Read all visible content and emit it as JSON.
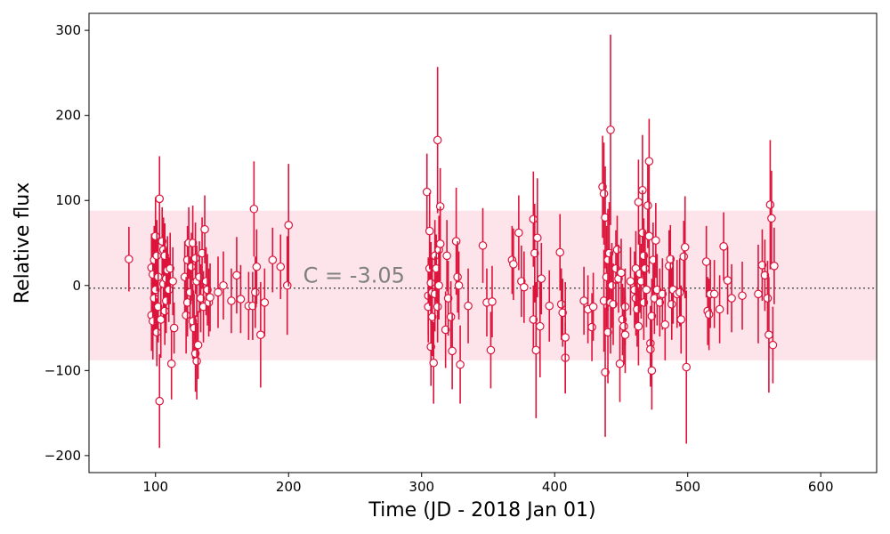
{
  "chart_data": {
    "type": "scatter",
    "title": "",
    "xlabel": "Time (JD - 2018 Jan 01)",
    "ylabel": "Relative flux",
    "xlim": [
      50,
      642
    ],
    "ylim": [
      -220,
      320
    ],
    "xticks": [
      100,
      200,
      300,
      400,
      500,
      600
    ],
    "yticks": [
      -200,
      -100,
      0,
      100,
      200,
      300
    ],
    "annotation": "C = -3.05",
    "reference_level": -3.05,
    "band": [
      -88,
      88
    ],
    "grid": false,
    "colors": {
      "errorbar": "#dc143c",
      "marker_edge": "#dc143c",
      "marker_fill": "#ffffff",
      "band": "#fce4ea",
      "reference_line": "#555555",
      "annotation": "#808080"
    },
    "points": [
      {
        "x": 80,
        "y": 31,
        "err": 38
      },
      {
        "x": 97,
        "y": 21,
        "err": 40
      },
      {
        "x": 97,
        "y": -35,
        "err": 42
      },
      {
        "x": 98,
        "y": 13,
        "err": 45
      },
      {
        "x": 98,
        "y": -42,
        "err": 45
      },
      {
        "x": 99,
        "y": 30,
        "err": 40
      },
      {
        "x": 99,
        "y": -15,
        "err": 38
      },
      {
        "x": 100,
        "y": 58,
        "err": 46
      },
      {
        "x": 100,
        "y": -5,
        "err": 50
      },
      {
        "x": 101,
        "y": 35,
        "err": 42
      },
      {
        "x": 101,
        "y": -55,
        "err": 40
      },
      {
        "x": 102,
        "y": 10,
        "err": 44
      },
      {
        "x": 102,
        "y": -25,
        "err": 42
      },
      {
        "x": 103,
        "y": 102,
        "err": 50
      },
      {
        "x": 103,
        "y": -136,
        "err": 55
      },
      {
        "x": 104,
        "y": -40,
        "err": 45
      },
      {
        "x": 105,
        "y": 52,
        "err": 40
      },
      {
        "x": 106,
        "y": 42,
        "err": 38
      },
      {
        "x": 106,
        "y": 2,
        "err": 40
      },
      {
        "x": 107,
        "y": 35,
        "err": 38
      },
      {
        "x": 107,
        "y": -30,
        "err": 40
      },
      {
        "x": 108,
        "y": 8,
        "err": 36
      },
      {
        "x": 108,
        "y": -18,
        "err": 38
      },
      {
        "x": 109,
        "y": 18,
        "err": 40
      },
      {
        "x": 110,
        "y": -5,
        "err": 38
      },
      {
        "x": 111,
        "y": 20,
        "err": 42
      },
      {
        "x": 112,
        "y": -92,
        "err": 42
      },
      {
        "x": 113,
        "y": 5,
        "err": 40
      },
      {
        "x": 114,
        "y": -50,
        "err": 30
      },
      {
        "x": 122,
        "y": 10,
        "err": 42
      },
      {
        "x": 123,
        "y": -35,
        "err": 45
      },
      {
        "x": 124,
        "y": 30,
        "err": 40
      },
      {
        "x": 124,
        "y": -20,
        "err": 40
      },
      {
        "x": 125,
        "y": 50,
        "err": 42
      },
      {
        "x": 126,
        "y": -8,
        "err": 42
      },
      {
        "x": 127,
        "y": 22,
        "err": 40
      },
      {
        "x": 128,
        "y": 50,
        "err": 44
      },
      {
        "x": 128,
        "y": -42,
        "err": 44
      },
      {
        "x": 129,
        "y": -50,
        "err": 40
      },
      {
        "x": 130,
        "y": -80,
        "err": 45
      },
      {
        "x": 130,
        "y": 32,
        "err": 42
      },
      {
        "x": 131,
        "y": -89,
        "err": 45
      },
      {
        "x": 131,
        "y": 5,
        "err": 42
      },
      {
        "x": 132,
        "y": -70,
        "err": 40
      },
      {
        "x": 133,
        "y": 10,
        "err": 42
      },
      {
        "x": 134,
        "y": -15,
        "err": 40
      },
      {
        "x": 135,
        "y": 38,
        "err": 42
      },
      {
        "x": 136,
        "y": -25,
        "err": 42
      },
      {
        "x": 137,
        "y": 66,
        "err": 40
      },
      {
        "x": 138,
        "y": 5,
        "err": 40
      },
      {
        "x": 139,
        "y": -5,
        "err": 42
      },
      {
        "x": 140,
        "y": -20,
        "err": 40
      },
      {
        "x": 141,
        "y": -14,
        "err": 40
      },
      {
        "x": 147,
        "y": -8,
        "err": 42
      },
      {
        "x": 151,
        "y": 0,
        "err": 40
      },
      {
        "x": 157,
        "y": -18,
        "err": 38
      },
      {
        "x": 161,
        "y": 12,
        "err": 45
      },
      {
        "x": 164,
        "y": -16,
        "err": 40
      },
      {
        "x": 170,
        "y": -24,
        "err": 40
      },
      {
        "x": 173,
        "y": -24,
        "err": 40
      },
      {
        "x": 174,
        "y": 90,
        "err": 56
      },
      {
        "x": 175,
        "y": -8,
        "err": 42
      },
      {
        "x": 176,
        "y": 22,
        "err": 44
      },
      {
        "x": 179,
        "y": -58,
        "err": 62
      },
      {
        "x": 182,
        "y": -20,
        "err": 40
      },
      {
        "x": 188,
        "y": 30,
        "err": 38
      },
      {
        "x": 194,
        "y": 22,
        "err": 38
      },
      {
        "x": 199,
        "y": 0,
        "err": 58
      },
      {
        "x": 200,
        "y": 71,
        "err": 72
      },
      {
        "x": 304,
        "y": 110,
        "err": 45
      },
      {
        "x": 305,
        "y": -12,
        "err": 45
      },
      {
        "x": 305,
        "y": -25,
        "err": 42
      },
      {
        "x": 306,
        "y": 20,
        "err": 44
      },
      {
        "x": 306,
        "y": 64,
        "err": 45
      },
      {
        "x": 307,
        "y": 3,
        "err": 48
      },
      {
        "x": 307,
        "y": -72,
        "err": 46
      },
      {
        "x": 308,
        "y": -8,
        "err": 44
      },
      {
        "x": 308,
        "y": -37,
        "err": 46
      },
      {
        "x": 309,
        "y": -91,
        "err": 48
      },
      {
        "x": 310,
        "y": 35,
        "err": 42
      },
      {
        "x": 310,
        "y": -10,
        "err": 44
      },
      {
        "x": 311,
        "y": 20,
        "err": 40
      },
      {
        "x": 312,
        "y": 171,
        "err": 86
      },
      {
        "x": 312,
        "y": -25,
        "err": 42
      },
      {
        "x": 313,
        "y": 42,
        "err": 40
      },
      {
        "x": 313,
        "y": 0,
        "err": 40
      },
      {
        "x": 314,
        "y": 93,
        "err": 45
      },
      {
        "x": 314,
        "y": 49,
        "err": 44
      },
      {
        "x": 318,
        "y": -52,
        "err": 45
      },
      {
        "x": 319,
        "y": 35,
        "err": 42
      },
      {
        "x": 320,
        "y": -15,
        "err": 44
      },
      {
        "x": 322,
        "y": -37,
        "err": 42
      },
      {
        "x": 323,
        "y": -77,
        "err": 45
      },
      {
        "x": 326,
        "y": 52,
        "err": 63
      },
      {
        "x": 327,
        "y": 10,
        "err": 42
      },
      {
        "x": 328,
        "y": 0,
        "err": 40
      },
      {
        "x": 329,
        "y": -93,
        "err": 46
      },
      {
        "x": 335,
        "y": -24,
        "err": 44
      },
      {
        "x": 346,
        "y": 47,
        "err": 44
      },
      {
        "x": 349,
        "y": -20,
        "err": 40
      },
      {
        "x": 352,
        "y": -76,
        "err": 45
      },
      {
        "x": 353,
        "y": -19,
        "err": 42
      },
      {
        "x": 368,
        "y": 30,
        "err": 40
      },
      {
        "x": 369,
        "y": 25,
        "err": 42
      },
      {
        "x": 373,
        "y": 62,
        "err": 44
      },
      {
        "x": 375,
        "y": 5,
        "err": 42
      },
      {
        "x": 377,
        "y": -2,
        "err": 42
      },
      {
        "x": 384,
        "y": 78,
        "err": 56
      },
      {
        "x": 384,
        "y": -40,
        "err": 40
      },
      {
        "x": 385,
        "y": 38,
        "err": 58
      },
      {
        "x": 386,
        "y": -76,
        "err": 80
      },
      {
        "x": 387,
        "y": 56,
        "err": 70
      },
      {
        "x": 389,
        "y": -48,
        "err": 60
      },
      {
        "x": 390,
        "y": 8,
        "err": 42
      },
      {
        "x": 396,
        "y": -24,
        "err": 42
      },
      {
        "x": 404,
        "y": 39,
        "err": 45
      },
      {
        "x": 405,
        "y": -22,
        "err": 42
      },
      {
        "x": 406,
        "y": -32,
        "err": 40
      },
      {
        "x": 408,
        "y": -85,
        "err": 42
      },
      {
        "x": 408,
        "y": -61,
        "err": 65
      },
      {
        "x": 422,
        "y": -18,
        "err": 40
      },
      {
        "x": 425,
        "y": -28,
        "err": 40
      },
      {
        "x": 428,
        "y": -49,
        "err": 40
      },
      {
        "x": 429,
        "y": -25,
        "err": 40
      },
      {
        "x": 436,
        "y": 116,
        "err": 60
      },
      {
        "x": 437,
        "y": 108,
        "err": 60
      },
      {
        "x": 437,
        "y": -18,
        "err": 60
      },
      {
        "x": 438,
        "y": 80,
        "err": 60
      },
      {
        "x": 438,
        "y": -102,
        "err": 76
      },
      {
        "x": 439,
        "y": 10,
        "err": 60
      },
      {
        "x": 440,
        "y": 30,
        "err": 60
      },
      {
        "x": 440,
        "y": -55,
        "err": 60
      },
      {
        "x": 441,
        "y": 38,
        "err": 60
      },
      {
        "x": 442,
        "y": 183,
        "err": 112
      },
      {
        "x": 442,
        "y": -20,
        "err": 60
      },
      {
        "x": 443,
        "y": 0,
        "err": 50
      },
      {
        "x": 444,
        "y": -22,
        "err": 48
      },
      {
        "x": 446,
        "y": 20,
        "err": 45
      },
      {
        "x": 447,
        "y": 42,
        "err": 40
      },
      {
        "x": 448,
        "y": 8,
        "err": 40
      },
      {
        "x": 449,
        "y": -92,
        "err": 45
      },
      {
        "x": 450,
        "y": 15,
        "err": 40
      },
      {
        "x": 451,
        "y": -40,
        "err": 42
      },
      {
        "x": 452,
        "y": -48,
        "err": 45
      },
      {
        "x": 453,
        "y": -25,
        "err": 45
      },
      {
        "x": 453,
        "y": -58,
        "err": 45
      },
      {
        "x": 457,
        "y": 5,
        "err": 40
      },
      {
        "x": 460,
        "y": -5,
        "err": 45
      },
      {
        "x": 461,
        "y": -15,
        "err": 44
      },
      {
        "x": 461,
        "y": 20,
        "err": 44
      },
      {
        "x": 462,
        "y": -28,
        "err": 44
      },
      {
        "x": 463,
        "y": 98,
        "err": 50
      },
      {
        "x": 463,
        "y": -48,
        "err": 46
      },
      {
        "x": 464,
        "y": 14,
        "err": 46
      },
      {
        "x": 465,
        "y": 5,
        "err": 44
      },
      {
        "x": 466,
        "y": 112,
        "err": 65
      },
      {
        "x": 466,
        "y": 62,
        "err": 50
      },
      {
        "x": 467,
        "y": 35,
        "err": 44
      },
      {
        "x": 467,
        "y": -20,
        "err": 44
      },
      {
        "x": 468,
        "y": 20,
        "err": 44
      },
      {
        "x": 469,
        "y": -5,
        "err": 44
      },
      {
        "x": 470,
        "y": 94,
        "err": 50
      },
      {
        "x": 471,
        "y": 146,
        "err": 50
      },
      {
        "x": 471,
        "y": 58,
        "err": 44
      },
      {
        "x": 472,
        "y": -68,
        "err": 44
      },
      {
        "x": 472,
        "y": -75,
        "err": 44
      },
      {
        "x": 473,
        "y": -36,
        "err": 44
      },
      {
        "x": 473,
        "y": -100,
        "err": 46
      },
      {
        "x": 474,
        "y": 30,
        "err": 44
      },
      {
        "x": 475,
        "y": -15,
        "err": 42
      },
      {
        "x": 476,
        "y": 53,
        "err": 44
      },
      {
        "x": 477,
        "y": -5,
        "err": 42
      },
      {
        "x": 479,
        "y": -20,
        "err": 40
      },
      {
        "x": 481,
        "y": -10,
        "err": 42
      },
      {
        "x": 483,
        "y": -46,
        "err": 42
      },
      {
        "x": 486,
        "y": 23,
        "err": 42
      },
      {
        "x": 487,
        "y": 31,
        "err": 40
      },
      {
        "x": 488,
        "y": -22,
        "err": 42
      },
      {
        "x": 489,
        "y": -5,
        "err": 40
      },
      {
        "x": 492,
        "y": -10,
        "err": 40
      },
      {
        "x": 494,
        "y": -8,
        "err": 40
      },
      {
        "x": 495,
        "y": -40,
        "err": 40
      },
      {
        "x": 497,
        "y": 34,
        "err": 42
      },
      {
        "x": 498,
        "y": 45,
        "err": 60
      },
      {
        "x": 499,
        "y": -96,
        "err": 90
      },
      {
        "x": 514,
        "y": 28,
        "err": 42
      },
      {
        "x": 515,
        "y": -30,
        "err": 40
      },
      {
        "x": 516,
        "y": -34,
        "err": 42
      },
      {
        "x": 517,
        "y": -10,
        "err": 40
      },
      {
        "x": 520,
        "y": -10,
        "err": 40
      },
      {
        "x": 524,
        "y": -28,
        "err": 40
      },
      {
        "x": 527,
        "y": 46,
        "err": 40
      },
      {
        "x": 530,
        "y": 6,
        "err": 40
      },
      {
        "x": 533,
        "y": -15,
        "err": 40
      },
      {
        "x": 541,
        "y": -12,
        "err": 40
      },
      {
        "x": 553,
        "y": -10,
        "err": 58
      },
      {
        "x": 556,
        "y": 24,
        "err": 42
      },
      {
        "x": 558,
        "y": 12,
        "err": 42
      },
      {
        "x": 560,
        "y": -15,
        "err": 44
      },
      {
        "x": 561,
        "y": -58,
        "err": 68
      },
      {
        "x": 562,
        "y": 95,
        "err": 76
      },
      {
        "x": 563,
        "y": 79,
        "err": 56
      },
      {
        "x": 564,
        "y": -70,
        "err": 45
      },
      {
        "x": 565,
        "y": 23,
        "err": 45
      }
    ]
  }
}
